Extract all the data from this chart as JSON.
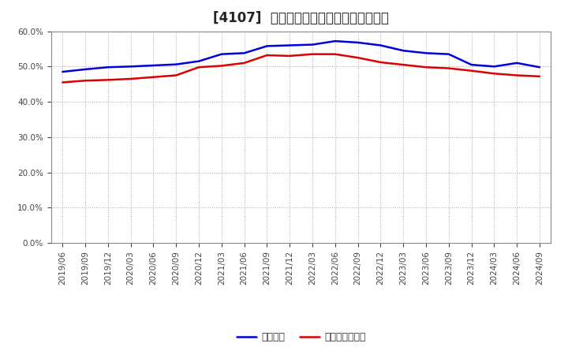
{
  "title": "[4107]  固定比率、固定長期適合率の推移",
  "x_labels": [
    "2019/06",
    "2019/09",
    "2019/12",
    "2020/03",
    "2020/06",
    "2020/09",
    "2020/12",
    "2021/03",
    "2021/06",
    "2021/09",
    "2021/12",
    "2022/03",
    "2022/06",
    "2022/09",
    "2022/12",
    "2023/03",
    "2023/06",
    "2023/09",
    "2023/12",
    "2024/03",
    "2024/06",
    "2024/09"
  ],
  "fixed_ratio": [
    48.5,
    49.2,
    49.8,
    50.0,
    50.3,
    50.6,
    51.5,
    53.5,
    53.8,
    55.8,
    56.0,
    56.2,
    57.2,
    56.8,
    56.0,
    54.5,
    53.8,
    53.5,
    50.5,
    50.0,
    51.0,
    49.8
  ],
  "fixed_longterm_ratio": [
    45.5,
    46.0,
    46.2,
    46.5,
    47.0,
    47.5,
    49.8,
    50.2,
    51.0,
    53.2,
    53.0,
    53.5,
    53.5,
    52.5,
    51.2,
    50.5,
    49.8,
    49.5,
    48.8,
    48.0,
    47.5,
    47.2
  ],
  "blue_color": "#0000dd",
  "red_color": "#dd0000",
  "background_color": "#ffffff",
  "grid_color": "#aaaaaa",
  "ylim": [
    0.0,
    60.0
  ],
  "yticks": [
    0.0,
    10.0,
    20.0,
    30.0,
    40.0,
    50.0,
    60.0
  ],
  "legend_blue": "固定比率",
  "legend_red": "固定長期適合率",
  "title_fontsize": 12,
  "legend_fontsize": 9,
  "tick_fontsize": 7.5
}
